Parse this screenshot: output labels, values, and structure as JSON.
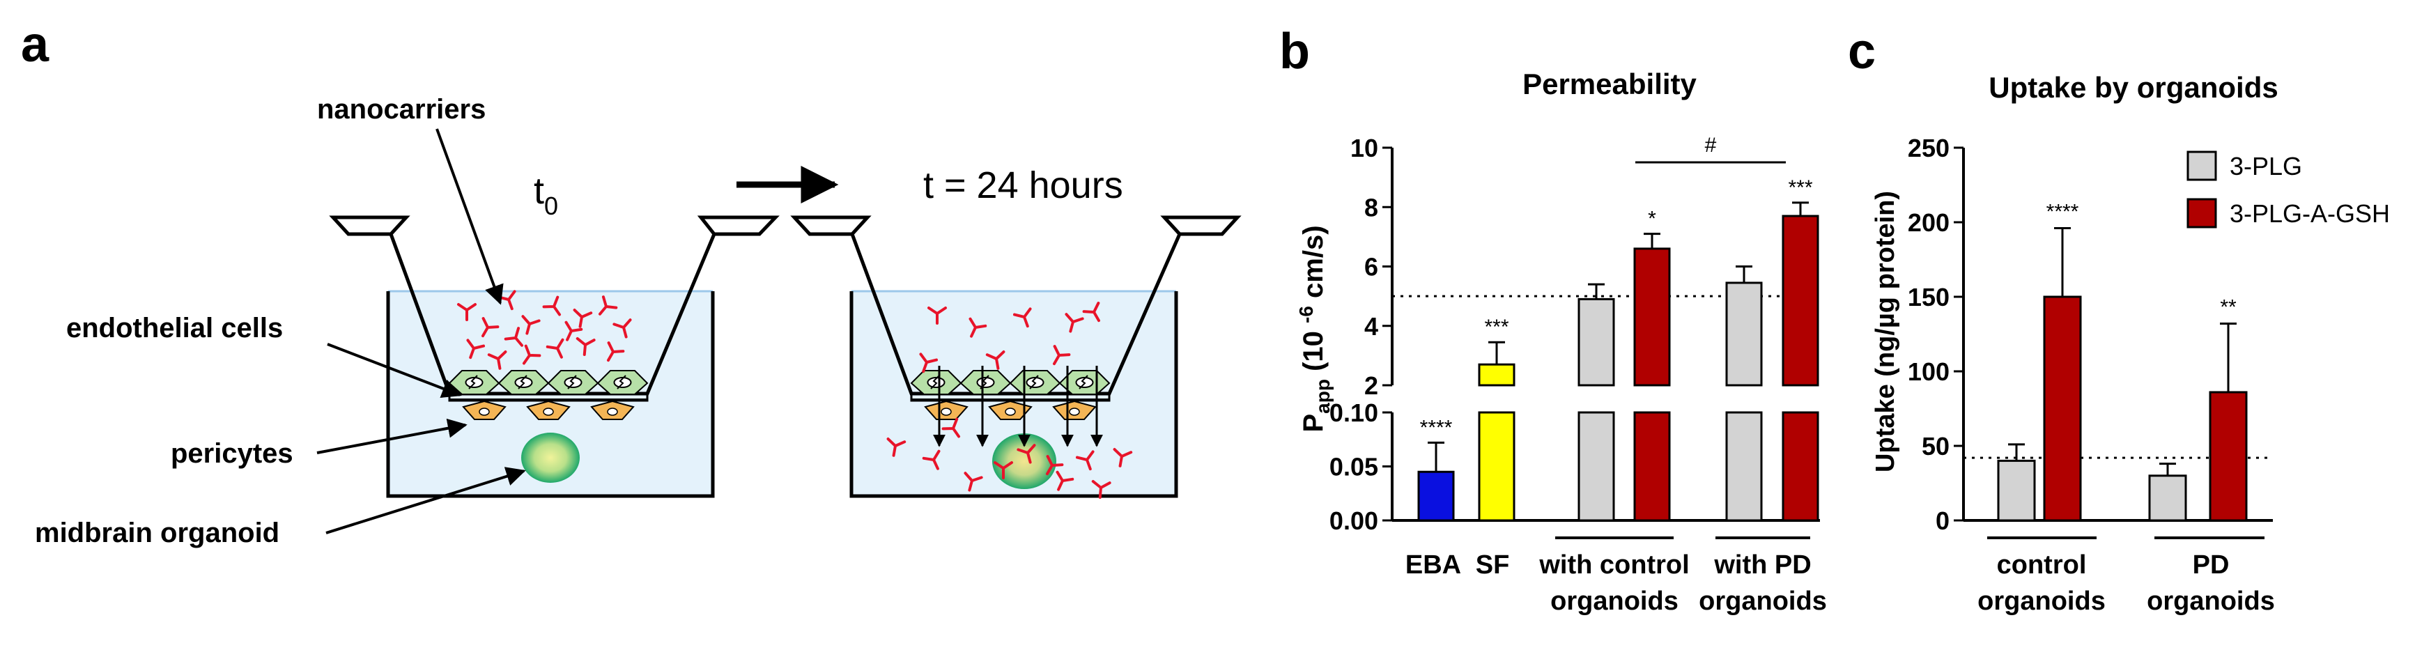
{
  "panel_a": {
    "letter": "a",
    "label_nanocarriers": "nanocarriers",
    "label_endothelial": "endothelial cells",
    "label_pericytes": "pericytes",
    "label_organoid": "midbrain organoid",
    "t0_base": "t",
    "t0_sub": "0",
    "t24": "t = 24 hours"
  },
  "panel_b": {
    "letter": "b",
    "title": "Permeability",
    "ylabel_main": "P",
    "ylabel_sub": "app",
    "ylabel_rest_a": " (10 ",
    "ylabel_sup": "-6",
    "ylabel_rest_b": " cm/s)",
    "group_ebA": "EBA",
    "group_sf": "SF",
    "group_ctrl_line1": "with control",
    "group_ctrl_line2": "organoids",
    "group_pd_line1": "with PD",
    "group_pd_line2": "organoids",
    "hash": "#",
    "reference_line": 5.0
  },
  "panel_c": {
    "letter": "c",
    "title": "Uptake by organoids",
    "ylabel": "Uptake (ng/µg protein)",
    "group_ctrl_line1": "control",
    "group_ctrl_line2": "organoids",
    "group_pd_line1": "PD",
    "group_pd_line2": "organoids",
    "reference_line": 42
  },
  "chart_data": [
    {
      "type": "bar",
      "title": "Permeability",
      "ylabel": "Papp (10 -6 cm/s)",
      "axis_break": {
        "lower_range": [
          0,
          0.1
        ],
        "upper_range": [
          2,
          10
        ]
      },
      "lower_ticks": [
        "0.00",
        "0.05",
        "0.10"
      ],
      "upper_ticks": [
        "2",
        "4",
        "6",
        "8",
        "10"
      ],
      "bars": [
        {
          "group": "EBA",
          "value": 0.045,
          "error": 0.027,
          "color": "#0a10e0",
          "sig": "****"
        },
        {
          "group": "SF",
          "value": 2.7,
          "error": 0.75,
          "color": "#ffff00",
          "sig": "***"
        },
        {
          "group": "with control organoids",
          "series": "3-PLG",
          "value": 4.9,
          "error": 0.5,
          "color": "#d3d3d3",
          "sig": ""
        },
        {
          "group": "with control organoids",
          "series": "3-PLG-A-GSH",
          "value": 6.6,
          "error": 0.5,
          "color": "#b00000",
          "sig": "*"
        },
        {
          "group": "with PD organoids",
          "series": "3-PLG",
          "value": 5.45,
          "error": 0.55,
          "color": "#d3d3d3",
          "sig": ""
        },
        {
          "group": "with PD organoids",
          "series": "3-PLG-A-GSH",
          "value": 7.7,
          "error": 0.45,
          "color": "#b00000",
          "sig": "***"
        }
      ],
      "reference_line": 5.0
    },
    {
      "type": "bar",
      "title": "Uptake by organoids",
      "ylabel": "Uptake (ng/µg protein)",
      "ylim": [
        0,
        250
      ],
      "yticks": [
        "0",
        "50",
        "100",
        "150",
        "200",
        "250"
      ],
      "categories": [
        "control organoids",
        "PD organoids"
      ],
      "series": [
        {
          "name": "3-PLG",
          "color": "#d3d3d3",
          "values": [
            40,
            30
          ],
          "errors": [
            11,
            8
          ],
          "sig": [
            "",
            ""
          ]
        },
        {
          "name": "3-PLG-A-GSH",
          "color": "#b00000",
          "values": [
            150,
            86
          ],
          "errors": [
            46,
            46
          ],
          "sig": [
            "****",
            "**"
          ]
        }
      ],
      "reference_line": 42,
      "legend": "top-right"
    }
  ]
}
